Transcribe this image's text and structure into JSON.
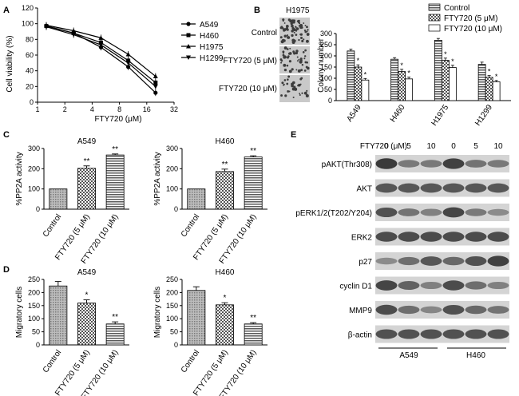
{
  "colors": {
    "bar_gray": "#8c8c8c",
    "band_dark": "#3a3a3a",
    "band_bg": "#d4d4d4"
  },
  "chart_data": [
    {
      "panel": "A",
      "type": "line",
      "ylabel": "Cell viability (%)",
      "xlabel": "FTY720 (μM)",
      "xscale": "log2",
      "xlim": [
        1,
        32
      ],
      "ylim": [
        0,
        120
      ],
      "xticks": [
        "1",
        "2",
        "4",
        "8",
        "16",
        "32"
      ],
      "yticks": [
        "0",
        "20",
        "40",
        "60",
        "80",
        "100",
        "120"
      ],
      "x": [
        1.25,
        2.5,
        5,
        10,
        20
      ],
      "series": [
        {
          "name": "A549",
          "marker": "circle",
          "values": [
            97,
            88,
            70,
            45,
            12
          ]
        },
        {
          "name": "H460",
          "marker": "square",
          "values": [
            97,
            88,
            76,
            53,
            25
          ]
        },
        {
          "name": "H1975",
          "marker": "triangle",
          "values": [
            98,
            91,
            82,
            61,
            33
          ]
        },
        {
          "name": "H1299",
          "marker": "tri-down",
          "values": [
            96,
            86,
            73,
            50,
            20
          ]
        }
      ]
    },
    {
      "panel": "B",
      "type": "bar",
      "inset_title": "H1975",
      "row_labels": [
        "Control",
        "FTY720 (5 μM)",
        "FTY720 (10 μM)"
      ],
      "ylabel": "Colony number",
      "ylim": [
        0,
        300
      ],
      "yticks": [
        "0",
        "50",
        "100",
        "150",
        "200",
        "250",
        "300"
      ],
      "categories": [
        "A549",
        "H460",
        "H1975",
        "H1299"
      ],
      "series": [
        {
          "name": "Control",
          "pattern": "hstripe",
          "values": [
            222,
            185,
            270,
            162
          ]
        },
        {
          "name": "FTY720 (5 μM)",
          "pattern": "check",
          "values": [
            150,
            130,
            180,
            104
          ]
        },
        {
          "name": "FTY720 (10 μM)",
          "pattern": "plain",
          "values": [
            92,
            97,
            148,
            84
          ]
        }
      ],
      "errors": [
        [
          8,
          7,
          8,
          10
        ],
        [
          10,
          10,
          10,
          8
        ],
        [
          7,
          8,
          10,
          6
        ]
      ],
      "significance": [
        [
          "",
          "",
          "",
          ""
        ],
        [
          "*",
          "*",
          "*",
          "*"
        ],
        [
          "*",
          "*",
          "*",
          "*"
        ]
      ]
    },
    {
      "panel": "C",
      "type": "bar",
      "title": "A549",
      "ylabel": "%PP2A activity",
      "ylim": [
        0,
        300
      ],
      "yticks": [
        "0",
        "100",
        "200",
        "300"
      ],
      "categories": [
        "Control",
        "FTY720 (5 μM)",
        "FTY720 (10 μM)"
      ],
      "values": [
        100,
        202,
        268
      ],
      "errors": [
        0,
        12,
        5
      ],
      "significance": [
        "",
        "**",
        "**"
      ]
    },
    {
      "panel": "C",
      "type": "bar",
      "title": "H460",
      "ylabel": "%PP2A activity",
      "ylim": [
        0,
        300
      ],
      "yticks": [
        "0",
        "100",
        "200",
        "300"
      ],
      "categories": [
        "Control",
        "FTY720 (5 μM)",
        "FTY720 (10 μM)"
      ],
      "values": [
        100,
        186,
        258
      ],
      "errors": [
        0,
        12,
        6
      ],
      "significance": [
        "",
        "**",
        "**"
      ]
    },
    {
      "panel": "D",
      "type": "bar",
      "title": "A549",
      "ylabel": "Migratory cells",
      "ylim": [
        0,
        250
      ],
      "yticks": [
        "0",
        "50",
        "100",
        "150",
        "200",
        "250"
      ],
      "yticks_full": [
        "0",
        "25",
        "50",
        "75",
        "100",
        "125",
        "150",
        "175",
        "200",
        "225",
        "250"
      ],
      "categories": [
        "Control",
        "FTY720 (5 μM)",
        "FTY720 (10 μM)"
      ],
      "values": [
        225,
        160,
        80
      ],
      "errors": [
        17,
        12,
        8
      ],
      "significance": [
        "",
        "*",
        "**"
      ]
    },
    {
      "panel": "D",
      "type": "bar",
      "title": "H460",
      "ylabel": "Migratory cells",
      "ylim": [
        0,
        250
      ],
      "yticks": [
        "0",
        "50",
        "100",
        "150",
        "200",
        "250"
      ],
      "categories": [
        "Control",
        "FTY720 (5 μM)",
        "FTY720 (10 μM)"
      ],
      "values": [
        208,
        153,
        80
      ],
      "errors": [
        14,
        8,
        5
      ],
      "significance": [
        "",
        "*",
        "**"
      ]
    },
    {
      "panel": "E",
      "type": "blot",
      "header_label": "FTY720 (μM)",
      "lanes": [
        "0",
        "5",
        "10",
        "0",
        "5",
        "10"
      ],
      "rows": [
        "pAKT(Thr308)",
        "AKT",
        "pERK1/2(T202/Y204)",
        "ERK2",
        "p27",
        "cyclin D1",
        "MMP9",
        "β-actin"
      ],
      "intensity": [
        [
          1.0,
          0.45,
          0.45,
          0.95,
          0.5,
          0.45
        ],
        [
          0.75,
          0.75,
          0.75,
          0.75,
          0.75,
          0.75
        ],
        [
          0.8,
          0.5,
          0.4,
          0.9,
          0.45,
          0.3
        ],
        [
          0.85,
          0.85,
          0.85,
          0.85,
          0.85,
          0.85
        ],
        [
          0.3,
          0.55,
          0.75,
          0.6,
          0.8,
          0.95
        ],
        [
          0.9,
          0.65,
          0.4,
          0.85,
          0.55,
          0.4
        ],
        [
          0.85,
          0.55,
          0.35,
          0.8,
          0.6,
          0.5
        ],
        [
          0.8,
          0.8,
          0.8,
          0.8,
          0.8,
          0.8
        ]
      ],
      "groups": [
        "A549",
        "H460"
      ]
    }
  ],
  "panel_labels": {
    "a": "A",
    "b": "B",
    "c": "C",
    "d": "D",
    "e": "E"
  }
}
